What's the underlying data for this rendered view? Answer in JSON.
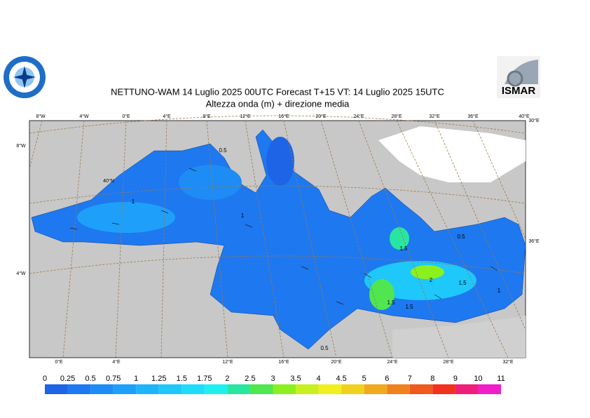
{
  "header": {
    "title": "NETTUNO-WAM  14  Luglio   2025 00UTC Forecast T+15 VT: 14  Luglio   2025 15UTC",
    "subtitle": "Altezza onda (m) + direzione media",
    "logo_right": "ISMAR"
  },
  "graticule": {
    "top": [
      "8°W",
      "4°W",
      "0°E",
      "4°E",
      "8°E",
      "12°E",
      "16°E",
      "20°E",
      "24°E",
      "28°E",
      "32°E",
      "36°E",
      "40°E"
    ],
    "bottom": [
      "0°E",
      "4°E",
      "12°E",
      "16°E",
      "20°E",
      "24°E",
      "28°E",
      "32°E"
    ],
    "left": [
      "8°W",
      "40°N",
      "4°W"
    ],
    "right": [
      "30°E",
      "36°E"
    ]
  },
  "map_labels": [
    "0.5",
    "1",
    "1",
    "0.5",
    "1.5",
    "1.5",
    "2",
    "1.5",
    "1",
    "1.5",
    "0.5"
  ],
  "colorbar": {
    "levels": [
      0,
      0.25,
      0.5,
      0.75,
      1,
      1.25,
      1.5,
      1.75,
      2,
      2.5,
      3,
      3.5,
      4,
      4.5,
      5,
      6,
      7,
      8,
      9,
      10,
      11
    ],
    "colors": [
      "#1e64e6",
      "#1e78f0",
      "#1e8cf5",
      "#1ea0fa",
      "#1eb4fa",
      "#1ec8fa",
      "#1edcfa",
      "#1ef0f0",
      "#28e6a0",
      "#50e650",
      "#8cf01e",
      "#c8f01e",
      "#f0f01e",
      "#f0d21e",
      "#f0aa1e",
      "#f0821e",
      "#f05a1e",
      "#f0321e",
      "#f01e78",
      "#f01ec8"
    ]
  }
}
